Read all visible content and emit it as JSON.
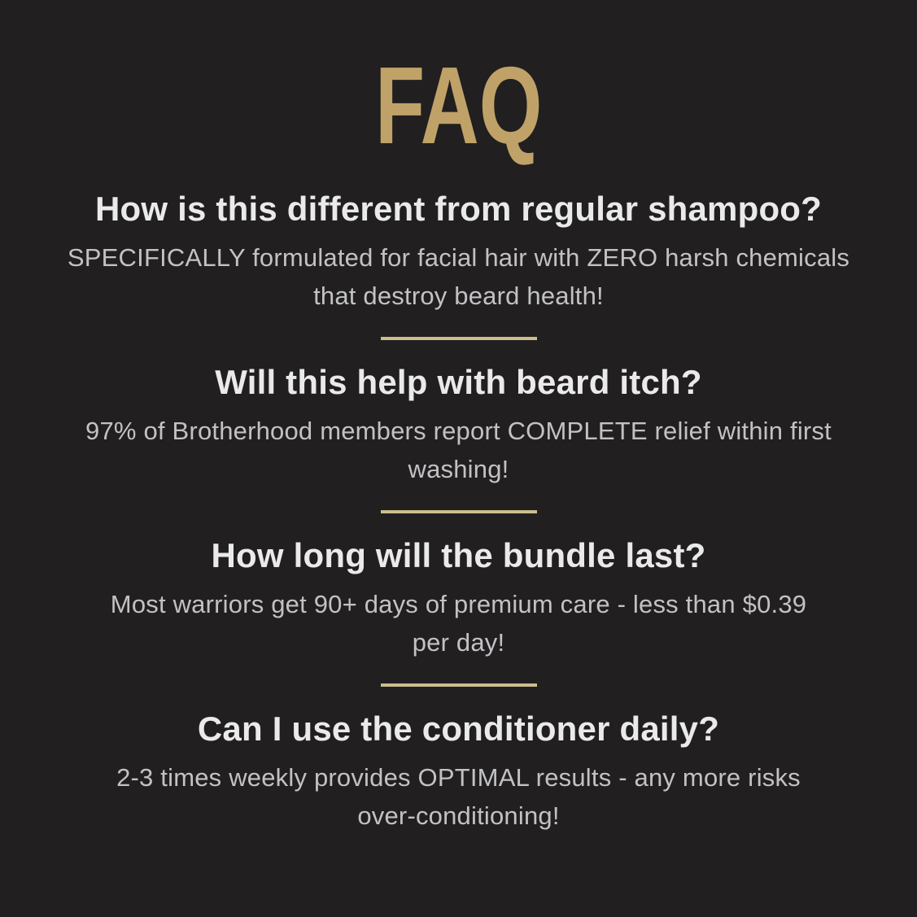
{
  "page": {
    "background_color": "#211F20"
  },
  "title": {
    "text": "FAQ",
    "color": "#C0A268"
  },
  "divider": {
    "color": "#CBBE8E"
  },
  "text_colors": {
    "question": "#EAEAEA",
    "answer": "#C2C2C5"
  },
  "faq": {
    "items": [
      {
        "question": "How is this different from regular shampoo?",
        "answer_lines": [
          "SPECIFICALLY formulated for facial hair with ZERO harsh chemicals",
          "that destroy beard health!"
        ]
      },
      {
        "question": "Will this help with beard itch?",
        "answer_lines": [
          "97% of Brotherhood members report COMPLETE relief within first",
          "washing!"
        ]
      },
      {
        "question": "How long will the bundle last?",
        "answer_lines": [
          "Most warriors get 90+ days of premium care - less than $0.39",
          "per day!"
        ]
      },
      {
        "question": "Can I use the conditioner daily?",
        "answer_lines": [
          "2-3 times weekly provides OPTIMAL results - any more risks",
          "over-conditioning!"
        ]
      }
    ]
  }
}
